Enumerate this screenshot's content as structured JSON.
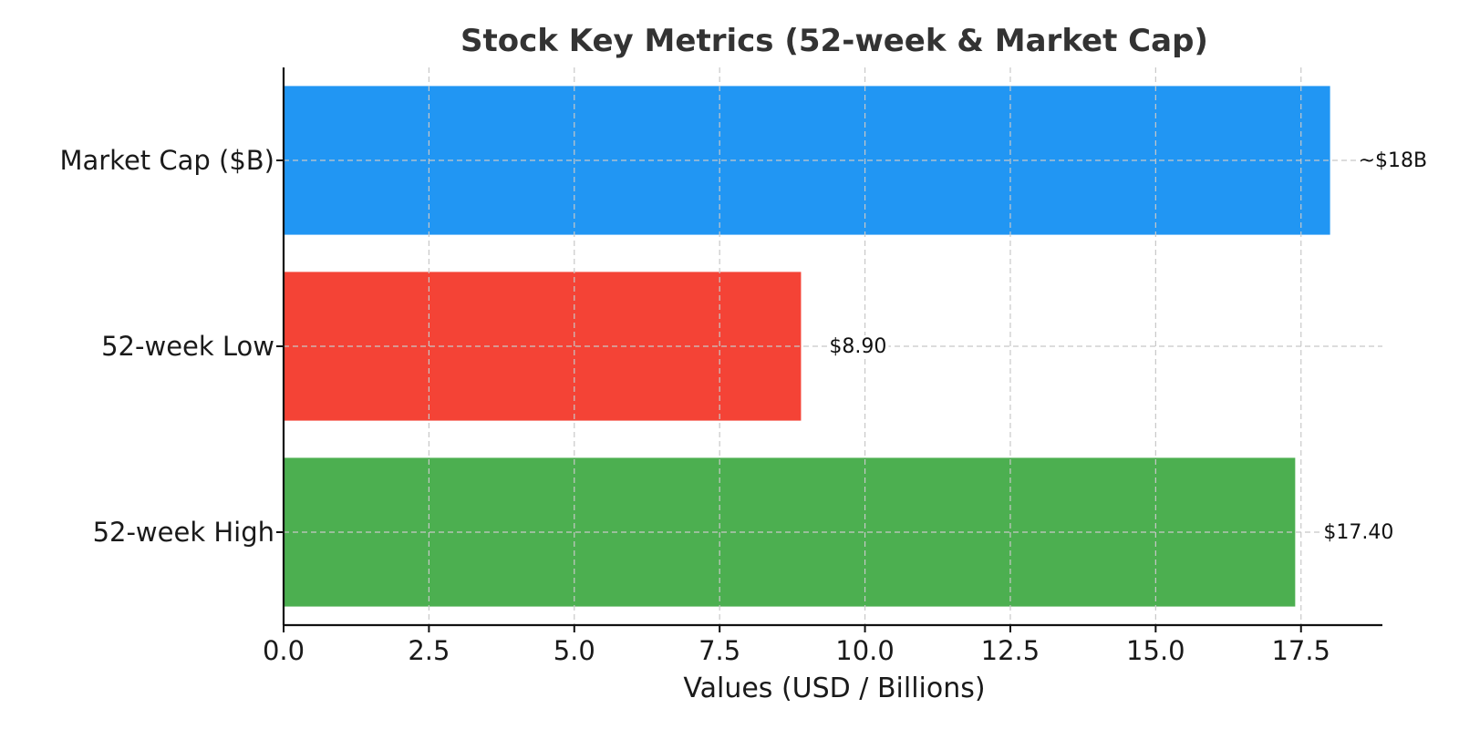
{
  "chart_data": {
    "type": "bar",
    "orientation": "horizontal",
    "title": "Stock Key Metrics (52-week & Market Cap)",
    "xlabel": "Values (USD / Billions)",
    "ylabel": "",
    "xlim": [
      0,
      18.9
    ],
    "xticks": [
      0.0,
      2.5,
      5.0,
      7.5,
      10.0,
      12.5,
      15.0,
      17.5
    ],
    "xtick_labels": [
      "0.0",
      "2.5",
      "5.0",
      "7.5",
      "10.0",
      "12.5",
      "15.0",
      "17.5"
    ],
    "grid": true,
    "categories": [
      "52-week High",
      "52-week Low",
      "Market Cap ($B)"
    ],
    "values": [
      17.4,
      8.9,
      18
    ],
    "data_labels": [
      "$17.40",
      "$8.90",
      "~$18B"
    ],
    "colors": [
      "#4caf50",
      "#f44336",
      "#2196f3"
    ]
  }
}
